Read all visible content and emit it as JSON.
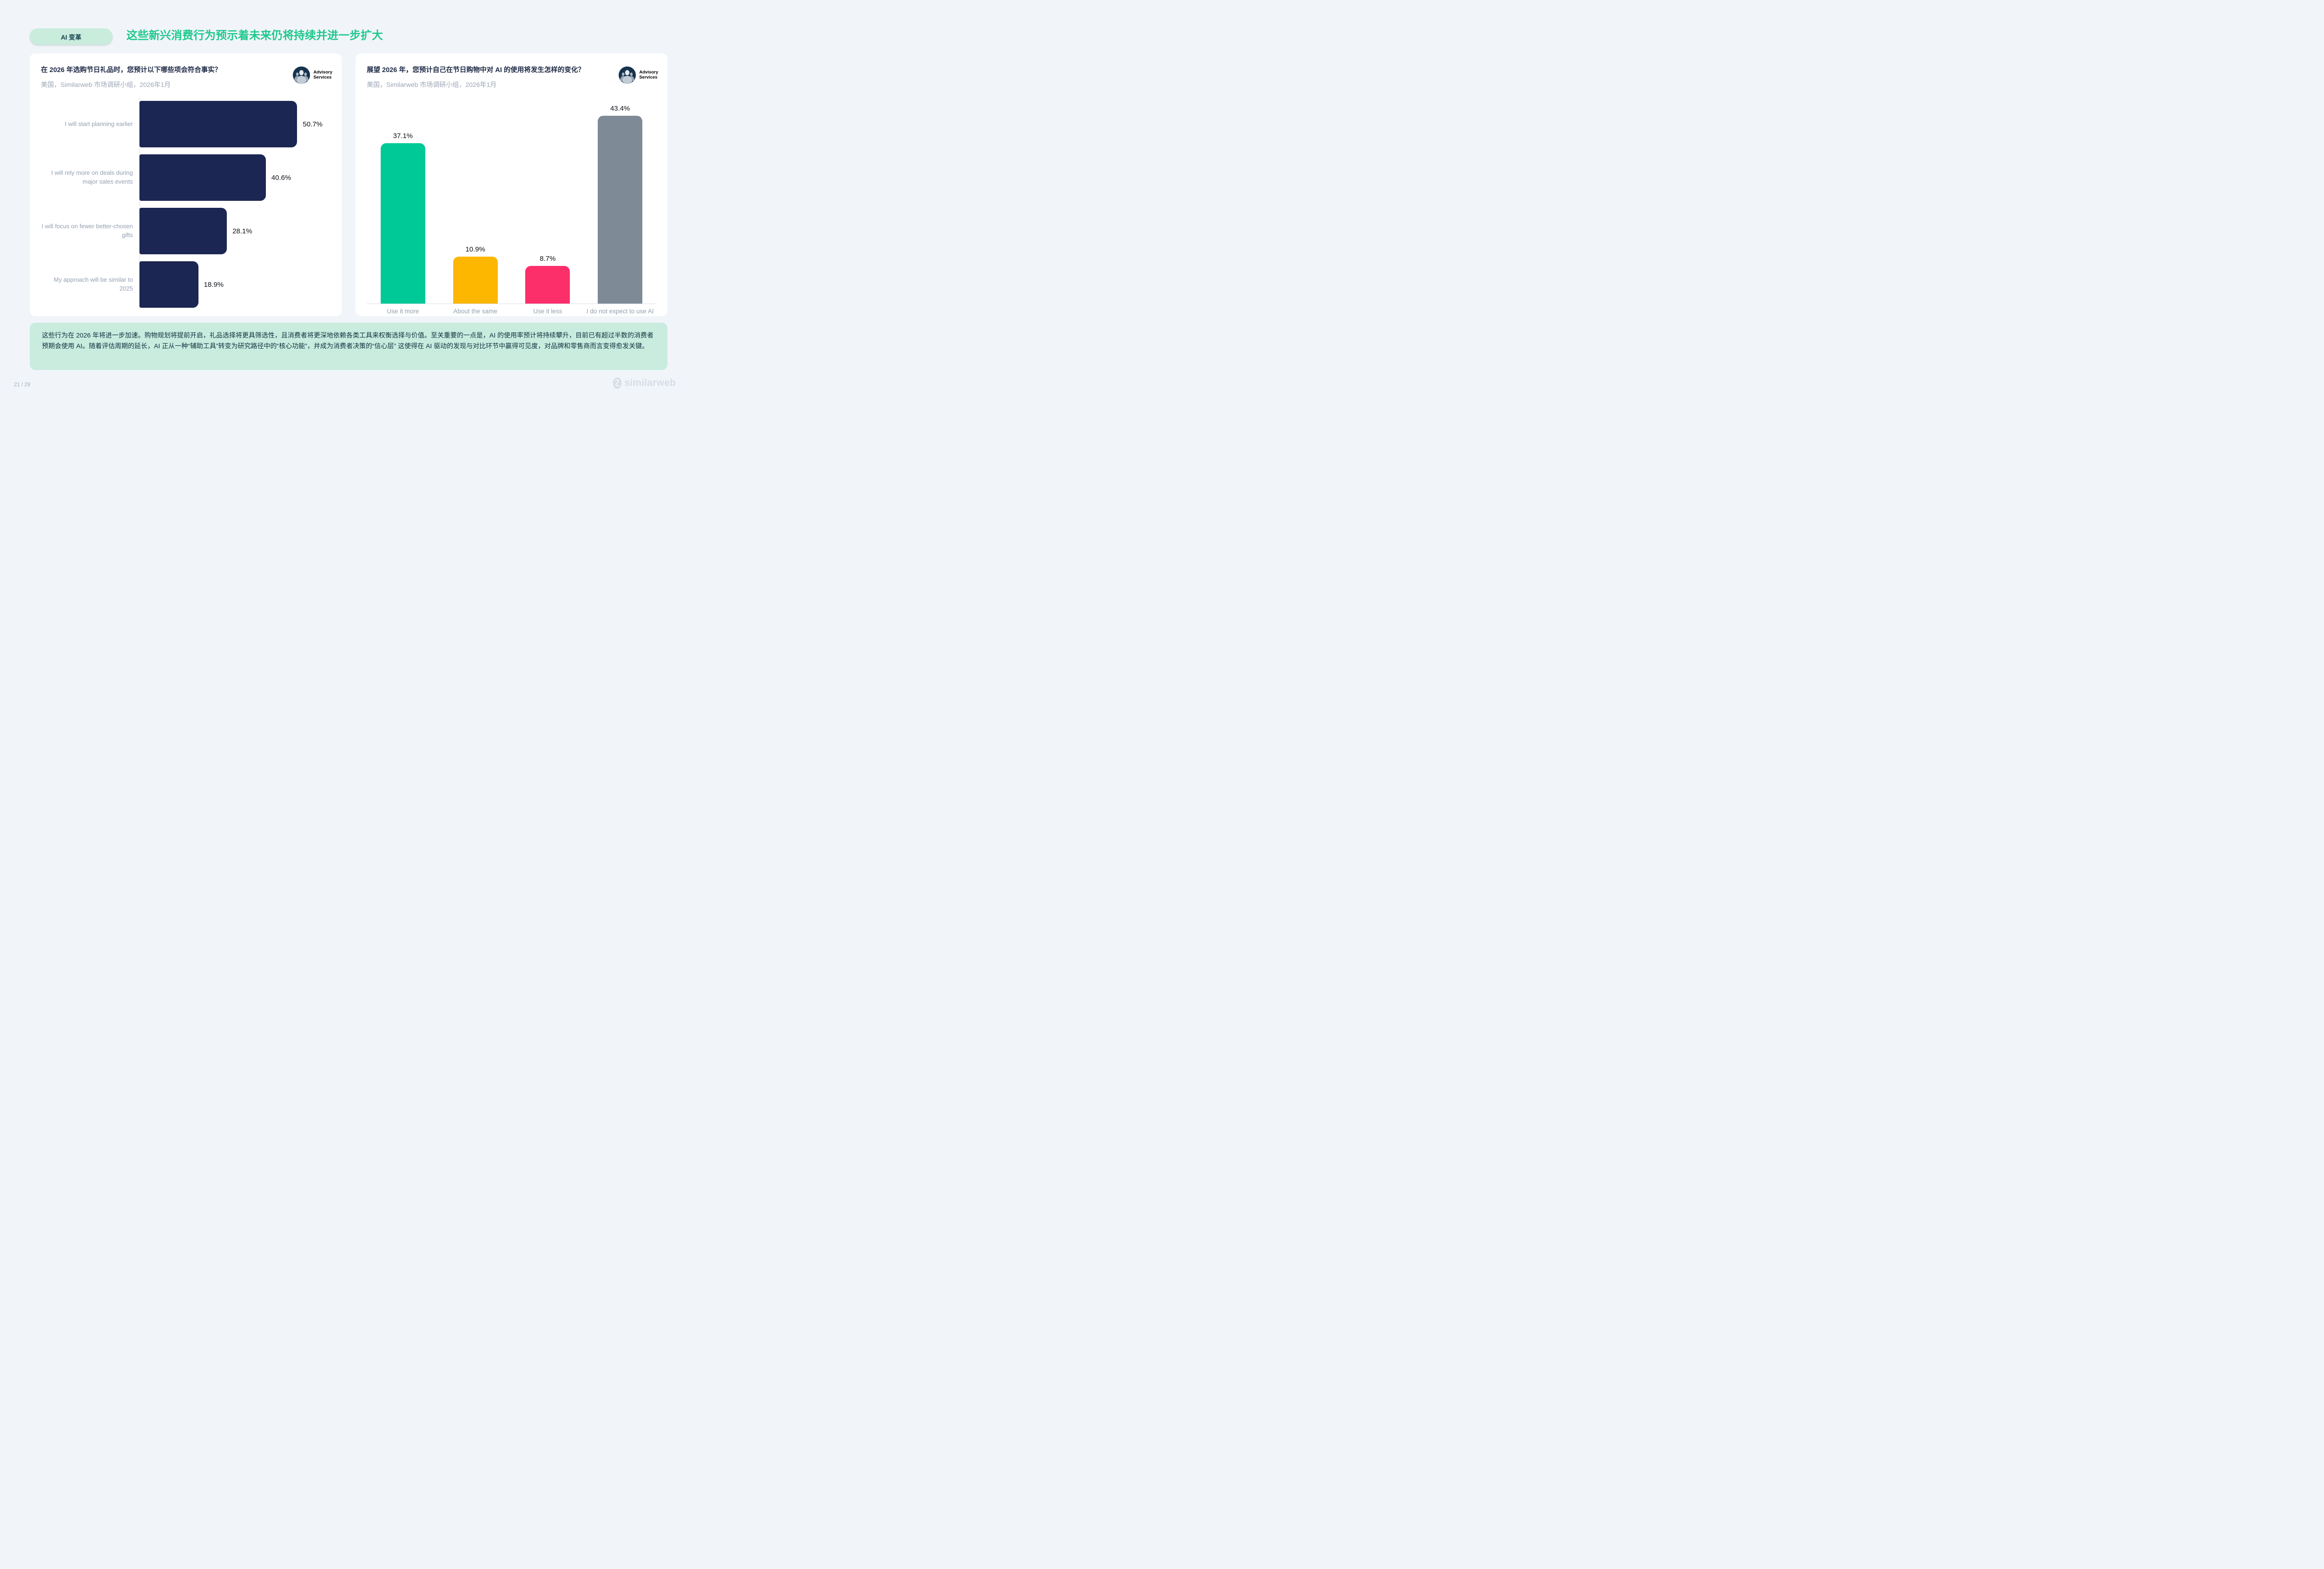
{
  "page": {
    "badge": "AI 变革",
    "title": "这些新兴消费行为预示着未来仍将持续并进一步扩大",
    "page_number": "21 / 29",
    "brand": "similarweb"
  },
  "advisory_logo": {
    "line1": "Advisory",
    "line2": "Services"
  },
  "left_card": {
    "question": "在 2026 年选购节日礼品时，您预计以下哪些项会符合事实？",
    "source": "美国，Similarweb 市场调研小组，2026年1月"
  },
  "right_card": {
    "question": "展望 2026 年，您预计自己在节日购物中对 AI 的使用将发生怎样的变化？",
    "source": "美国，Similarweb 市场调研小组，2026年1月"
  },
  "summary": "这些行为在 2026 年将进一步加速。购物规划将提前开启，礼品选择将更具筛选性，且消费者将更深地依赖各类工具来权衡选择与价值。至关重要的一点是，AI 的使用率预计将持续攀升，目前已有超过半数的消费者预期会使用 AI。随着评估周期的延长，AI 正从一种“辅助工具”转变为研究路径中的“核心功能”，并成为消费者决策的“信心层” 这使得在 AI 驱动的发现与对比环节中赢得可见度，对品牌和零售商而言变得愈发关键。",
  "colors": {
    "accent_green": "#1FC88B",
    "badge_bg": "#C9ECDD",
    "summary_bg": "#C9ECDF",
    "card_bg": "#FFFFFF",
    "page_bg": "#F1F5FA",
    "label_gray": "#93A0B0",
    "value_text": "#0E1116"
  },
  "chart_data": [
    {
      "type": "bar",
      "orientation": "horizontal",
      "title": "在 2026 年选购节日礼品时，您预计以下哪些项会符合事实？",
      "subtitle": "美国，Similarweb 市场调研小组，2026年1月",
      "categories": [
        "I will start planning earlier",
        "I will rely more on deals during major sales events",
        "I will focus on fewer better-chosen gifts",
        "My approach will be similar to 2025"
      ],
      "values": [
        50.7,
        40.6,
        28.1,
        18.9
      ],
      "value_labels": [
        "50.7%",
        "40.6%",
        "28.1%",
        "18.9%"
      ],
      "unit": "%",
      "bar_color": "#1C2652",
      "scale_max": 62,
      "xlim": [
        0,
        62
      ],
      "grid": false,
      "legend": "none"
    },
    {
      "type": "bar",
      "orientation": "vertical",
      "title": "展望 2026 年，您预计自己在节日购物中对 AI 的使用将发生怎样的变化？",
      "subtitle": "美国，Similarweb 市场调研小组，2026年1月",
      "categories": [
        "Use it more",
        "About the same",
        "Use it less",
        "I do not expect to use AI"
      ],
      "values": [
        37.1,
        10.9,
        8.7,
        43.4
      ],
      "value_labels": [
        "37.1%",
        "10.9%",
        "8.7%",
        "43.4%"
      ],
      "unit": "%",
      "colors": [
        "#00C998",
        "#FDB700",
        "#FD2F6B",
        "#7E8B96"
      ],
      "scale_max": 46,
      "ylim": [
        0,
        46
      ],
      "grid": false,
      "legend": "none"
    }
  ]
}
